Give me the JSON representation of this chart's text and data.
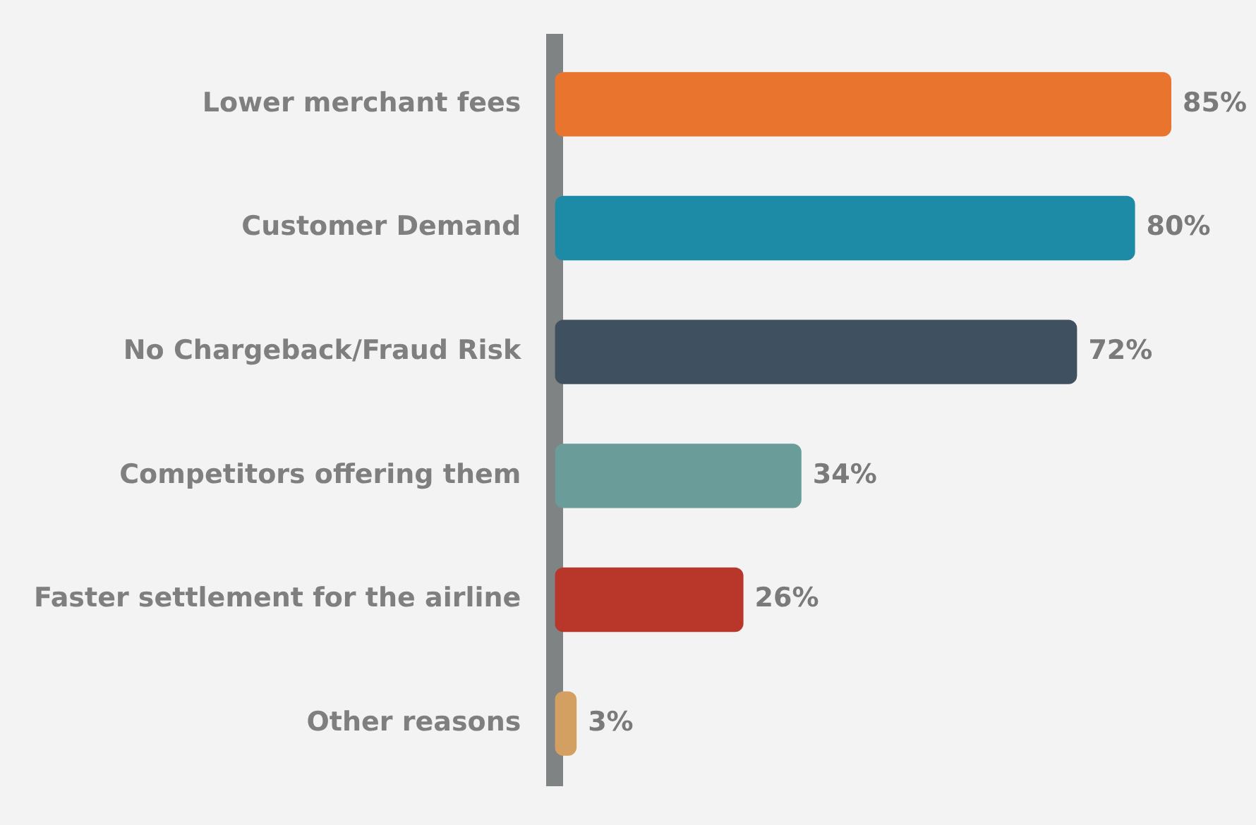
{
  "chart_data": {
    "type": "bar",
    "orientation": "horizontal",
    "categories": [
      "Lower merchant fees",
      "Customer Demand",
      "No Chargeback/Fraud Risk",
      "Competitors offering them",
      "Faster settlement for the airline",
      "Other reasons"
    ],
    "values": [
      85,
      80,
      72,
      34,
      26,
      3
    ],
    "colors": [
      "#e8742e",
      "#1e8ba6",
      "#3f5160",
      "#6a9c9a",
      "#b8372a",
      "#d4a062"
    ],
    "value_labels": [
      "85%",
      "80%",
      "72%",
      "34%",
      "26%",
      "3%"
    ],
    "grid": false,
    "legend": false
  }
}
